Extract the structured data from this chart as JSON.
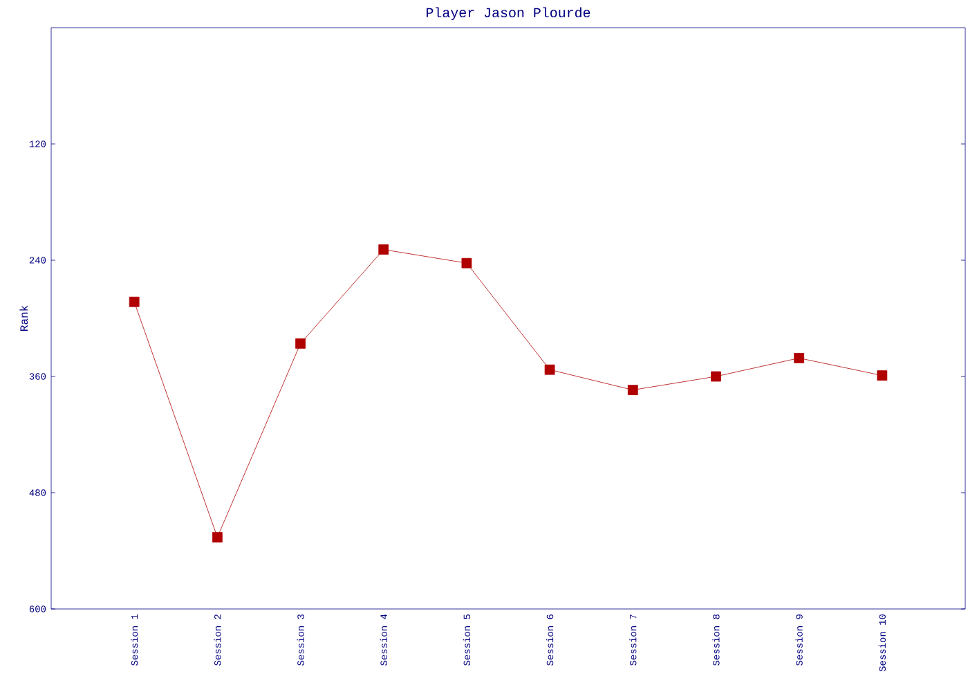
{
  "chart_data": {
    "type": "line",
    "title": "Player Jason Plourde",
    "ylabel": "Rank",
    "categories": [
      "Session 1",
      "Session 2",
      "Session 3",
      "Session 4",
      "Session 5",
      "Session 6",
      "Session 7",
      "Session 8",
      "Session 9",
      "Session 10"
    ],
    "series": [
      {
        "color": "#b00000",
        "values": [
          283,
          526,
          326,
          229,
          243,
          353,
          374,
          360,
          341,
          359
        ]
      }
    ],
    "ylim": [
      600,
      0
    ],
    "yticks": [
      120,
      240,
      360,
      480,
      600
    ],
    "marker": "square",
    "line_style": "solid"
  }
}
